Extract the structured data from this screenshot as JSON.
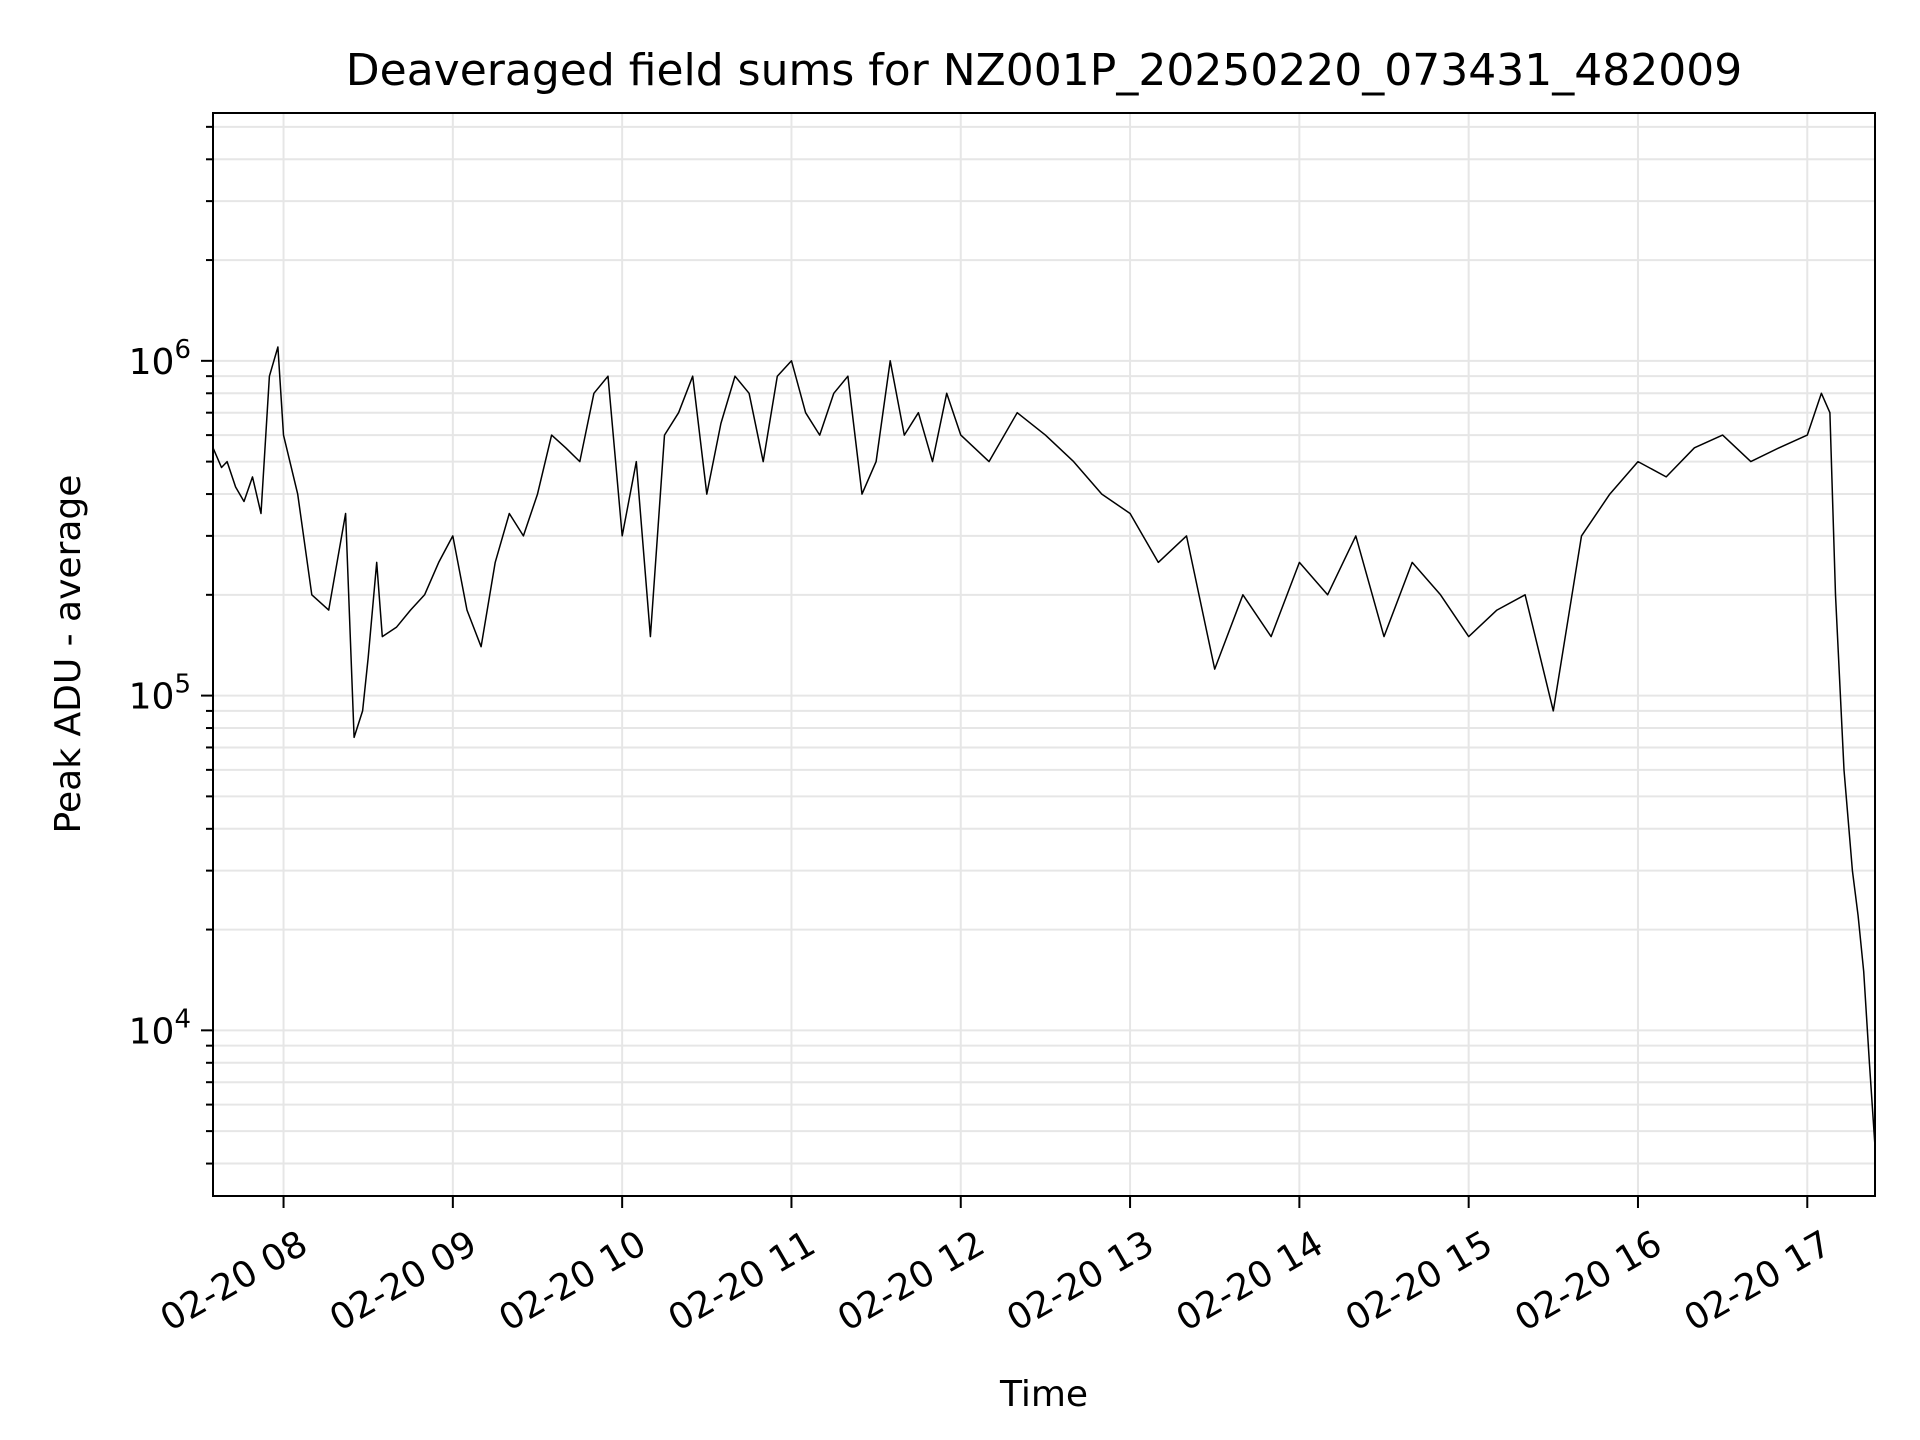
{
  "chart_data": {
    "type": "line",
    "title": "Deaveraged field sums for NZ001P_20250220_073431_482009",
    "xlabel": "Time",
    "ylabel": "Peak ADU - average",
    "y_scale": "log",
    "ylim": [
      3200,
      5500000
    ],
    "xlim": [
      "2025-02-20 07:35",
      "2025-02-20 17:24"
    ],
    "grid": "on (major and minor)",
    "line_color": "#000000",
    "x_ticks": [
      {
        "value": "2025-02-20 08:00",
        "label": "02-20 08"
      },
      {
        "value": "2025-02-20 09:00",
        "label": "02-20 09"
      },
      {
        "value": "2025-02-20 10:00",
        "label": "02-20 10"
      },
      {
        "value": "2025-02-20 11:00",
        "label": "02-20 11"
      },
      {
        "value": "2025-02-20 12:00",
        "label": "02-20 12"
      },
      {
        "value": "2025-02-20 13:00",
        "label": "02-20 13"
      },
      {
        "value": "2025-02-20 14:00",
        "label": "02-20 14"
      },
      {
        "value": "2025-02-20 15:00",
        "label": "02-20 15"
      },
      {
        "value": "2025-02-20 16:00",
        "label": "02-20 16"
      },
      {
        "value": "2025-02-20 17:00",
        "label": "02-20 17"
      }
    ],
    "y_ticks": [
      {
        "value": 10000,
        "base": "10",
        "exp": "4"
      },
      {
        "value": 100000,
        "base": "10",
        "exp": "5"
      },
      {
        "value": 1000000,
        "base": "10",
        "exp": "6"
      }
    ],
    "series": [
      {
        "x": [
          "2025-02-20 07:35",
          "2025-02-20 07:38",
          "2025-02-20 07:40",
          "2025-02-20 07:43",
          "2025-02-20 07:46",
          "2025-02-20 07:49",
          "2025-02-20 07:52",
          "2025-02-20 07:55",
          "2025-02-20 07:58",
          "2025-02-20 08:00",
          "2025-02-20 08:05",
          "2025-02-20 08:10",
          "2025-02-20 08:16",
          "2025-02-20 08:22",
          "2025-02-20 08:25",
          "2025-02-20 08:28",
          "2025-02-20 08:30",
          "2025-02-20 08:33",
          "2025-02-20 08:35",
          "2025-02-20 08:40",
          "2025-02-20 08:45",
          "2025-02-20 08:50",
          "2025-02-20 08:55",
          "2025-02-20 09:00",
          "2025-02-20 09:05",
          "2025-02-20 09:10",
          "2025-02-20 09:15",
          "2025-02-20 09:20",
          "2025-02-20 09:25",
          "2025-02-20 09:30",
          "2025-02-20 09:35",
          "2025-02-20 09:40",
          "2025-02-20 09:45",
          "2025-02-20 09:50",
          "2025-02-20 09:55",
          "2025-02-20 10:00",
          "2025-02-20 10:05",
          "2025-02-20 10:10",
          "2025-02-20 10:15",
          "2025-02-20 10:20",
          "2025-02-20 10:25",
          "2025-02-20 10:30",
          "2025-02-20 10:35",
          "2025-02-20 10:40",
          "2025-02-20 10:45",
          "2025-02-20 10:50",
          "2025-02-20 10:55",
          "2025-02-20 11:00",
          "2025-02-20 11:05",
          "2025-02-20 11:10",
          "2025-02-20 11:15",
          "2025-02-20 11:20",
          "2025-02-20 11:25",
          "2025-02-20 11:30",
          "2025-02-20 11:35",
          "2025-02-20 11:40",
          "2025-02-20 11:45",
          "2025-02-20 11:50",
          "2025-02-20 11:55",
          "2025-02-20 12:00",
          "2025-02-20 12:10",
          "2025-02-20 12:20",
          "2025-02-20 12:30",
          "2025-02-20 12:40",
          "2025-02-20 12:50",
          "2025-02-20 13:00",
          "2025-02-20 13:10",
          "2025-02-20 13:20",
          "2025-02-20 13:30",
          "2025-02-20 13:40",
          "2025-02-20 13:50",
          "2025-02-20 14:00",
          "2025-02-20 14:10",
          "2025-02-20 14:20",
          "2025-02-20 14:30",
          "2025-02-20 14:40",
          "2025-02-20 14:50",
          "2025-02-20 15:00",
          "2025-02-20 15:10",
          "2025-02-20 15:20",
          "2025-02-20 15:30",
          "2025-02-20 15:40",
          "2025-02-20 15:50",
          "2025-02-20 16:00",
          "2025-02-20 16:10",
          "2025-02-20 16:20",
          "2025-02-20 16:30",
          "2025-02-20 16:40",
          "2025-02-20 16:50",
          "2025-02-20 17:00",
          "2025-02-20 17:05",
          "2025-02-20 17:08",
          "2025-02-20 17:10",
          "2025-02-20 17:13",
          "2025-02-20 17:16",
          "2025-02-20 17:18",
          "2025-02-20 17:20",
          "2025-02-20 17:22",
          "2025-02-20 17:24"
        ],
        "y": [
          550000,
          480000,
          500000,
          420000,
          380000,
          450000,
          350000,
          900000,
          1100000,
          600000,
          400000,
          200000,
          180000,
          350000,
          75000,
          90000,
          130000,
          250000,
          150000,
          160000,
          180000,
          200000,
          250000,
          300000,
          180000,
          140000,
          250000,
          350000,
          300000,
          400000,
          600000,
          550000,
          500000,
          800000,
          900000,
          300000,
          500000,
          150000,
          600000,
          700000,
          900000,
          400000,
          650000,
          900000,
          800000,
          500000,
          900000,
          1000000,
          700000,
          600000,
          800000,
          900000,
          400000,
          500000,
          1000000,
          600000,
          700000,
          500000,
          800000,
          600000,
          500000,
          700000,
          600000,
          500000,
          400000,
          350000,
          250000,
          300000,
          120000,
          200000,
          150000,
          250000,
          200000,
          300000,
          150000,
          250000,
          200000,
          150000,
          180000,
          200000,
          90000,
          300000,
          400000,
          500000,
          450000,
          550000,
          600000,
          500000,
          550000,
          600000,
          800000,
          700000,
          200000,
          60000,
          30000,
          22000,
          15000,
          8000,
          4500
        ]
      }
    ]
  }
}
